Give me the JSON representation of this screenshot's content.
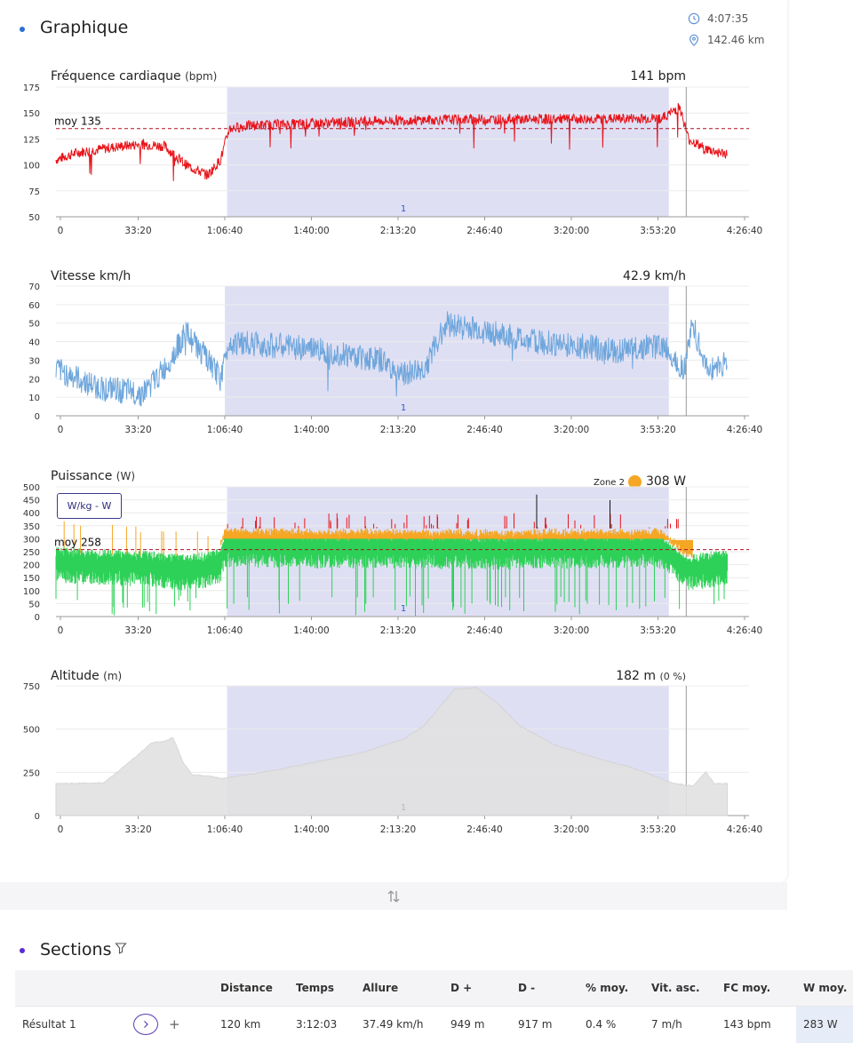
{
  "graph_section": {
    "title": "Graphique",
    "dot_color": "#2b6fd6",
    "summary": {
      "duration": "4:07:35",
      "distance": "142.46 km"
    }
  },
  "x_ticks": [
    "0",
    "33:20",
    "1:06:40",
    "1:40:00",
    "2:13:20",
    "2:46:40",
    "3:20:00",
    "3:53:20",
    "4:26:40"
  ],
  "lap_label": "1",
  "charts": {
    "heart_rate": {
      "title": "Fréquence cardiaque",
      "unit": "(bpm)",
      "value": "141 bpm",
      "avg_label": "moy 135"
    },
    "speed": {
      "title": "Vitesse km/h",
      "value": "42.9 km/h"
    },
    "power": {
      "title": "Puissance",
      "unit": "(W)",
      "zone_label": "Zone 2",
      "value": "308 W",
      "avg_label": "moy 258",
      "toggle_label": "W/kg - W"
    },
    "altitude": {
      "title": "Altitude",
      "unit": "(m)",
      "value": "182 m",
      "pct": "(0 %)"
    }
  },
  "chart_data": [
    {
      "type": "line",
      "name_hint": "heart_rate",
      "x_unit_seconds": [
        0,
        2000,
        4000,
        6000,
        8000,
        10000,
        12000,
        14000,
        16000
      ],
      "ylim": [
        50,
        175
      ],
      "yticks": [
        50,
        75,
        100,
        125,
        150,
        175
      ],
      "average": 135,
      "series_color": "#e8141a",
      "profile": [
        [
          0,
          105
        ],
        [
          500,
          112
        ],
        [
          1000,
          115
        ],
        [
          1500,
          118
        ],
        [
          2000,
          120
        ],
        [
          2500,
          118
        ],
        [
          3000,
          100
        ],
        [
          3500,
          90
        ],
        [
          3800,
          105
        ],
        [
          4000,
          135
        ],
        [
          4500,
          138
        ],
        [
          6000,
          140
        ],
        [
          8000,
          143
        ],
        [
          10000,
          144
        ],
        [
          12000,
          144
        ],
        [
          14000,
          145
        ],
        [
          14400,
          156
        ],
        [
          14600,
          125
        ],
        [
          15000,
          115
        ],
        [
          15500,
          110
        ]
      ]
    },
    {
      "type": "line",
      "name_hint": "speed",
      "x_unit_seconds": [
        0,
        2000,
        4000,
        6000,
        8000,
        10000,
        12000,
        14000,
        16000
      ],
      "ylim": [
        0,
        70
      ],
      "yticks": [
        0,
        10,
        20,
        30,
        40,
        50,
        60,
        70
      ],
      "series_color": "#6ea6dc",
      "profile": [
        [
          0,
          25
        ],
        [
          1000,
          15
        ],
        [
          2000,
          12
        ],
        [
          2500,
          25
        ],
        [
          3000,
          45
        ],
        [
          3500,
          30
        ],
        [
          3800,
          20
        ],
        [
          4000,
          40
        ],
        [
          5000,
          38
        ],
        [
          6000,
          36
        ],
        [
          7500,
          30
        ],
        [
          8000,
          22
        ],
        [
          8500,
          25
        ],
        [
          9000,
          50
        ],
        [
          10000,
          45
        ],
        [
          11000,
          40
        ],
        [
          12000,
          38
        ],
        [
          13000,
          35
        ],
        [
          14000,
          38
        ],
        [
          14500,
          25
        ],
        [
          14700,
          50
        ],
        [
          15000,
          25
        ],
        [
          15500,
          28
        ]
      ]
    },
    {
      "type": "line",
      "name_hint": "power",
      "x_unit_seconds": [
        0,
        2000,
        4000,
        6000,
        8000,
        10000,
        12000,
        14000,
        16000
      ],
      "ylim": [
        0,
        500
      ],
      "yticks": [
        0,
        50,
        100,
        150,
        200,
        250,
        300,
        350,
        400,
        450,
        500
      ],
      "average": 258,
      "zone_colors": {
        "zone1": "#2ed158",
        "zone2": "#f5a623",
        "zone3": "#e8141a",
        "zone4": "#111111"
      },
      "profile": [
        [
          0,
          230
        ],
        [
          1000,
          220
        ],
        [
          2000,
          215
        ],
        [
          3000,
          200
        ],
        [
          3500,
          210
        ],
        [
          3800,
          230
        ],
        [
          3900,
          290
        ],
        [
          6000,
          285
        ],
        [
          8000,
          285
        ],
        [
          10000,
          280
        ],
        [
          12000,
          285
        ],
        [
          14000,
          285
        ],
        [
          14600,
          200
        ],
        [
          15500,
          220
        ]
      ]
    },
    {
      "type": "area",
      "name_hint": "altitude",
      "x_unit_seconds": [
        0,
        2000,
        4000,
        6000,
        8000,
        10000,
        12000,
        14000,
        16000
      ],
      "ylim": [
        0,
        750
      ],
      "yticks": [
        0,
        250,
        500,
        750
      ],
      "series_color": "#e2e2e2",
      "profile": [
        [
          0,
          185
        ],
        [
          1100,
          188
        ],
        [
          1800,
          330
        ],
        [
          2200,
          420
        ],
        [
          2500,
          430
        ],
        [
          2700,
          450
        ],
        [
          2950,
          300
        ],
        [
          3150,
          235
        ],
        [
          3500,
          230
        ],
        [
          3800,
          215
        ],
        [
          4000,
          220
        ],
        [
          5000,
          260
        ],
        [
          6000,
          310
        ],
        [
          7000,
          360
        ],
        [
          8000,
          440
        ],
        [
          8500,
          520
        ],
        [
          9200,
          730
        ],
        [
          9700,
          740
        ],
        [
          10200,
          650
        ],
        [
          10700,
          520
        ],
        [
          11500,
          410
        ],
        [
          12500,
          330
        ],
        [
          13200,
          285
        ],
        [
          13700,
          240
        ],
        [
          14200,
          190
        ],
        [
          14700,
          170
        ],
        [
          15000,
          250
        ],
        [
          15200,
          185
        ],
        [
          15500,
          185
        ]
      ]
    }
  ],
  "sections": {
    "title": "Sections",
    "dot_color": "#5b2bd6",
    "columns": [
      "",
      "",
      "Distance",
      "Temps",
      "Allure",
      "D +",
      "D -",
      "% moy.",
      "Vit. asc.",
      "FC moy.",
      "W moy."
    ],
    "rows": [
      {
        "name": "Résultat 1",
        "distance": "120 km",
        "temps": "3:12:03",
        "allure": "37.49 km/h",
        "d_plus": "949 m",
        "d_minus": "917 m",
        "pct": "0.4 %",
        "vit_asc": "7 m/h",
        "fc": "143 bpm",
        "w": "283 W"
      }
    ]
  }
}
